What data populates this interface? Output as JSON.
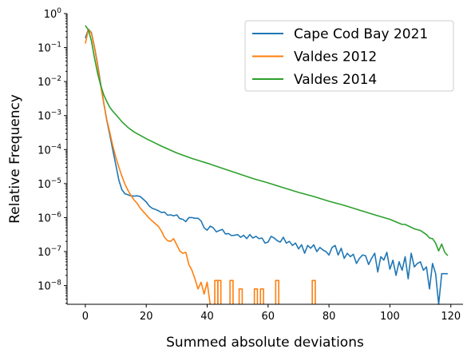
{
  "chart_data": {
    "type": "line",
    "xlabel": "Summed absolute deviations",
    "ylabel": "Relative Frequency",
    "xlim": [
      -6,
      124
    ],
    "ylim_log10": [
      -8.55,
      0
    ],
    "y_scale": "log",
    "grid": false,
    "legend_position": "top-right",
    "x_ticks": [
      {
        "value": 0,
        "label": "0"
      },
      {
        "value": 20,
        "label": "20"
      },
      {
        "value": 40,
        "label": "40"
      },
      {
        "value": 60,
        "label": "60"
      },
      {
        "value": 80,
        "label": "80"
      },
      {
        "value": 100,
        "label": "100"
      },
      {
        "value": 120,
        "label": "120"
      }
    ],
    "y_ticks": [
      {
        "exp": 0,
        "base": "10",
        "sup": "0"
      },
      {
        "exp": -1,
        "base": "10",
        "sup": "−1"
      },
      {
        "exp": -2,
        "base": "10",
        "sup": "−2"
      },
      {
        "exp": -3,
        "base": "10",
        "sup": "−3"
      },
      {
        "exp": -4,
        "base": "10",
        "sup": "−4"
      },
      {
        "exp": -5,
        "base": "10",
        "sup": "−5"
      },
      {
        "exp": -6,
        "base": "10",
        "sup": "−6"
      },
      {
        "exp": -7,
        "base": "10",
        "sup": "−7"
      },
      {
        "exp": -8,
        "base": "10",
        "sup": "−8"
      }
    ],
    "series": [
      {
        "name": "Cape Cod Bay 2021",
        "color": "#1f77b4",
        "x": [
          0,
          1,
          2,
          3,
          4,
          5,
          6,
          7,
          8,
          9,
          10,
          11,
          12,
          13,
          14,
          15,
          16,
          17,
          18,
          19,
          20,
          21,
          22,
          23,
          24,
          25,
          26,
          27,
          28,
          29,
          30,
          31,
          32,
          33,
          34,
          35,
          36,
          37,
          38,
          39,
          40,
          41,
          42,
          43,
          44,
          45,
          46,
          47,
          48,
          49,
          50,
          51,
          52,
          53,
          54,
          55,
          56,
          57,
          58,
          59,
          60,
          61,
          62,
          63,
          64,
          65,
          66,
          67,
          68,
          69,
          70,
          71,
          72,
          73,
          74,
          75,
          76,
          77,
          78,
          79,
          80,
          81,
          82,
          83,
          84,
          85,
          86,
          87,
          88,
          89,
          90,
          91,
          92,
          93,
          94,
          95,
          96,
          97,
          98,
          99,
          100,
          101,
          102,
          103,
          104,
          105,
          106,
          107,
          108,
          109,
          110,
          111,
          112,
          113,
          114,
          115,
          116,
          117,
          118,
          119
        ],
        "log10y": [
          -0.72,
          -0.46,
          -0.56,
          -0.98,
          -1.48,
          -2.05,
          -2.6,
          -3.12,
          -3.55,
          -4.0,
          -4.44,
          -4.9,
          -5.18,
          -5.3,
          -5.33,
          -5.36,
          -5.37,
          -5.36,
          -5.38,
          -5.46,
          -5.54,
          -5.66,
          -5.73,
          -5.76,
          -5.8,
          -5.85,
          -5.84,
          -5.93,
          -5.92,
          -5.95,
          -5.92,
          -6.03,
          -6.05,
          -6.12,
          -6.0,
          -6.0,
          -6.02,
          -6.02,
          -6.1,
          -6.3,
          -6.37,
          -6.25,
          -6.3,
          -6.42,
          -6.38,
          -6.35,
          -6.48,
          -6.47,
          -6.53,
          -6.52,
          -6.5,
          -6.58,
          -6.52,
          -6.62,
          -6.5,
          -6.6,
          -6.55,
          -6.62,
          -6.6,
          -6.75,
          -6.72,
          -6.55,
          -6.6,
          -6.68,
          -6.72,
          -6.58,
          -6.75,
          -6.7,
          -6.82,
          -6.75,
          -6.92,
          -6.8,
          -7.05,
          -6.82,
          -6.9,
          -6.8,
          -7.0,
          -6.88,
          -6.95,
          -7.0,
          -7.1,
          -6.88,
          -6.82,
          -7.1,
          -6.9,
          -7.2,
          -7.05,
          -7.15,
          -7.08,
          -7.35,
          -7.2,
          -7.1,
          -7.12,
          -7.38,
          -7.2,
          -7.05,
          -7.6,
          -7.15,
          -7.25,
          -7.02,
          -7.52,
          -7.25,
          -7.7,
          -7.3,
          -7.55,
          -7.15,
          -7.8,
          -7.05,
          -7.45,
          -7.35,
          -7.3,
          -7.55,
          -7.45,
          -8.1,
          -7.35,
          -7.65,
          -8.55,
          -7.65,
          -7.65,
          -7.65
        ],
        "drops_below_axis_at_x": [
          116
        ]
      },
      {
        "name": "Valdes 2012",
        "color": "#ff7f0e",
        "x": [
          0,
          1,
          2,
          3,
          4,
          5,
          6,
          7,
          8,
          9,
          10,
          11,
          12,
          13,
          14,
          15,
          16,
          17,
          18,
          19,
          20,
          21,
          22,
          23,
          24,
          25,
          26,
          27,
          28,
          29,
          30,
          31,
          32,
          33,
          34,
          35,
          36,
          37,
          38,
          39,
          40,
          41
        ],
        "log10y": [
          -0.88,
          -0.46,
          -0.58,
          -1.0,
          -1.52,
          -2.1,
          -2.62,
          -3.1,
          -3.48,
          -3.88,
          -4.22,
          -4.52,
          -4.78,
          -5.02,
          -5.2,
          -5.35,
          -5.48,
          -5.58,
          -5.72,
          -5.82,
          -5.92,
          -6.02,
          -6.1,
          -6.18,
          -6.26,
          -6.4,
          -6.58,
          -6.68,
          -6.7,
          -6.62,
          -6.8,
          -6.98,
          -7.05,
          -7.02,
          -7.38,
          -7.55,
          -7.8,
          -8.1,
          -7.9,
          -8.25,
          -7.9,
          -8.55
        ],
        "isolated_spikes": [
          {
            "x": 43,
            "log10y": -7.85
          },
          {
            "x": 44,
            "log10y": -7.85
          },
          {
            "x": 48,
            "log10y": -7.85
          },
          {
            "x": 51,
            "log10y": -8.1
          },
          {
            "x": 56,
            "log10y": -8.1
          },
          {
            "x": 58,
            "log10y": -8.1
          },
          {
            "x": 63,
            "log10y": -7.85
          },
          {
            "x": 75,
            "log10y": -7.85
          }
        ]
      },
      {
        "name": "Valdes 2014",
        "color": "#2ca02c",
        "x": [
          0,
          1,
          2,
          3,
          4,
          5,
          6,
          7,
          8,
          9,
          10,
          12,
          14,
          16,
          18,
          20,
          25,
          30,
          35,
          40,
          45,
          50,
          55,
          60,
          65,
          70,
          75,
          80,
          85,
          90,
          95,
          100,
          104,
          105,
          108,
          110,
          112,
          113,
          114,
          115,
          116,
          117,
          118,
          119
        ],
        "log10y": [
          -0.35,
          -0.48,
          -0.8,
          -1.3,
          -1.75,
          -2.1,
          -2.38,
          -2.58,
          -2.75,
          -2.87,
          -2.97,
          -3.18,
          -3.35,
          -3.48,
          -3.58,
          -3.68,
          -3.9,
          -4.1,
          -4.26,
          -4.4,
          -4.55,
          -4.7,
          -4.85,
          -4.98,
          -5.12,
          -5.26,
          -5.38,
          -5.52,
          -5.64,
          -5.78,
          -5.92,
          -6.05,
          -6.2,
          -6.2,
          -6.33,
          -6.38,
          -6.5,
          -6.6,
          -6.62,
          -6.75,
          -6.98,
          -6.78,
          -7.02,
          -7.12
        ]
      }
    ]
  }
}
